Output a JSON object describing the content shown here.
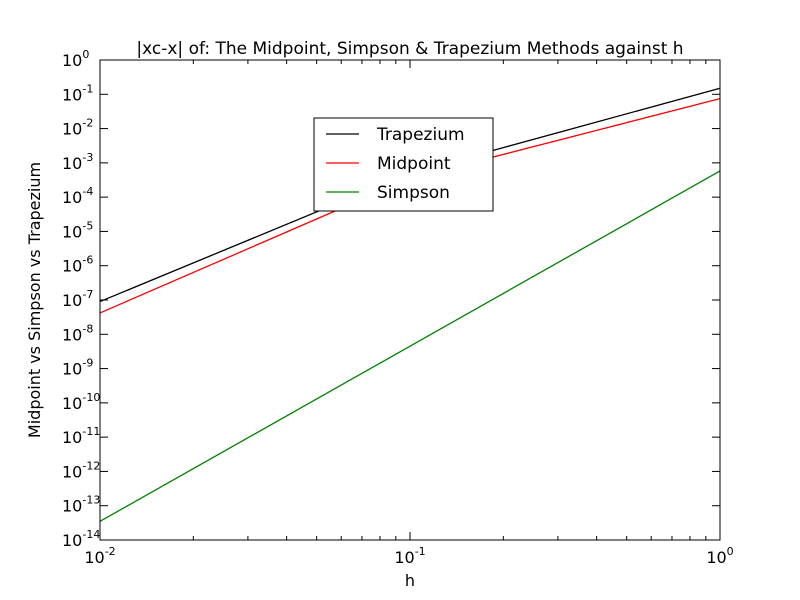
{
  "chart_data": {
    "type": "line",
    "title": "|xc-x| of: The Midpoint, Simpson & Trapezium Methods against h",
    "xlabel": "h",
    "ylabel": "Midpoint vs Simpson vs Trapezium",
    "xscale": "log",
    "yscale": "log",
    "xlim": [
      0.01,
      1
    ],
    "ylim": [
      1e-14,
      1
    ],
    "x_ticks": [
      {
        "value": 0.01,
        "base": "10",
        "exp": "-2"
      },
      {
        "value": 0.1,
        "base": "10",
        "exp": "-1"
      },
      {
        "value": 1,
        "base": "10",
        "exp": "0"
      }
    ],
    "y_ticks": [
      {
        "value": 1,
        "base": "10",
        "exp": "0"
      },
      {
        "value": 0.1,
        "base": "10",
        "exp": "-1"
      },
      {
        "value": 0.01,
        "base": "10",
        "exp": "-2"
      },
      {
        "value": 0.001,
        "base": "10",
        "exp": "-3"
      },
      {
        "value": 0.0001,
        "base": "10",
        "exp": "-4"
      },
      {
        "value": 1e-05,
        "base": "10",
        "exp": "-5"
      },
      {
        "value": 1e-06,
        "base": "10",
        "exp": "-6"
      },
      {
        "value": 1e-07,
        "base": "10",
        "exp": "-7"
      },
      {
        "value": 1e-08,
        "base": "10",
        "exp": "-8"
      },
      {
        "value": 1e-09,
        "base": "10",
        "exp": "-9"
      },
      {
        "value": 1e-10,
        "base": "10",
        "exp": "-10"
      },
      {
        "value": 1e-11,
        "base": "10",
        "exp": "-11"
      },
      {
        "value": 1e-12,
        "base": "10",
        "exp": "-12"
      },
      {
        "value": 1e-13,
        "base": "10",
        "exp": "-13"
      },
      {
        "value": 1e-14,
        "base": "10",
        "exp": "-14"
      }
    ],
    "grid": false,
    "legend_position": "upper-center",
    "series": [
      {
        "name": "Trapezium",
        "color": "#000000",
        "x": [
          0.01,
          0.1,
          1
        ],
        "y": [
          9e-08,
          0.0005,
          0.15
        ]
      },
      {
        "name": "Midpoint",
        "color": "#ff0000",
        "x": [
          0.01,
          0.1,
          1
        ],
        "y": [
          4.2e-08,
          0.00035,
          0.075
        ]
      },
      {
        "name": "Simpson",
        "color": "#008000",
        "x": [
          0.01,
          0.1,
          1
        ],
        "y": [
          3.5e-14,
          4.5e-09,
          0.00058
        ]
      }
    ]
  }
}
